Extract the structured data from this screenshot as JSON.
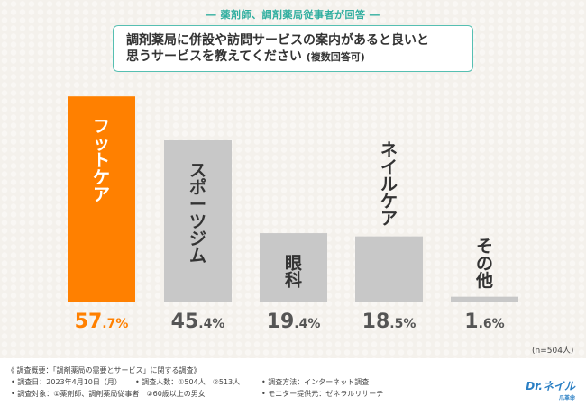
{
  "header": "― 薬剤師、調剤薬局従事者が回答 ―",
  "question": {
    "line1": "調剤薬局に併設や訪問サービスの案内があると良いと",
    "line2": "思うサービスを教えてください",
    "line2_sub": "(複数回答可)"
  },
  "chart_data": {
    "type": "bar",
    "categories": [
      "フットケア",
      "スポーツジム",
      "眼科",
      "ネイルケア",
      "その他"
    ],
    "values": [
      57.7,
      45.4,
      19.4,
      18.5,
      1.6
    ],
    "value_labels": [
      {
        "int": "57",
        "dec": ".7%"
      },
      {
        "int": "45",
        "dec": ".4%"
      },
      {
        "int": "19",
        "dec": ".4%"
      },
      {
        "int": "18",
        "dec": ".5%"
      },
      {
        "int": "1",
        "dec": ".6%"
      }
    ],
    "ylim": [
      0,
      58
    ],
    "highlight_index": 0,
    "colors": {
      "highlight": "#ff8000",
      "normal": "#c8c8c8",
      "highlight_text": "#ff8000",
      "normal_text": "#555555"
    },
    "note": "(n=504人)"
  },
  "footer": {
    "line1": "《 調査概要：「調剤薬局の需要とサービス」に関する調査》",
    "date": "• 調査日：2023年4月10日（月）",
    "count": "• 調査人数：①504人　②513人",
    "method": "• 調査方法：インターネット調査",
    "target": "• 調査対象：①薬剤師、調剤薬局従事者　②60歳以上の男女",
    "provider": "• モニター提供元：ゼネラルリサーチ"
  },
  "logo": {
    "main": "Dr.ネイル",
    "sub": "爪革命"
  }
}
